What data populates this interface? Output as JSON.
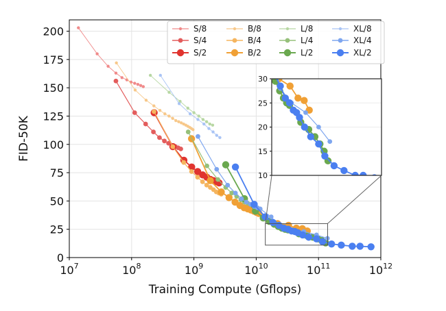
{
  "chart_data": {
    "type": "line",
    "title": "",
    "xlabel": "Training Compute (Gflops)",
    "ylabel": "FID-50K",
    "xscale": "log",
    "xlim": [
      10000000,
      1000000000000
    ],
    "ylim": [
      0,
      210
    ],
    "grid": true,
    "x_ticks": [
      {
        "value": 10000000,
        "base": "10",
        "exp": "7"
      },
      {
        "value": 100000000,
        "base": "10",
        "exp": "8"
      },
      {
        "value": 1000000000,
        "base": "10",
        "exp": "9"
      },
      {
        "value": 10000000000,
        "base": "10",
        "exp": "10"
      },
      {
        "value": 100000000000,
        "base": "10",
        "exp": "11"
      },
      {
        "value": 1000000000000,
        "base": "10",
        "exp": "12"
      }
    ],
    "y_ticks": [
      0,
      25,
      50,
      75,
      100,
      125,
      150,
      175,
      200
    ],
    "legend_position": "top-right",
    "series": [
      {
        "name": "S/8",
        "color": "#f08a8a",
        "size": "small",
        "x": [
          14000000,
          28000000,
          42000000,
          56000000,
          70000000,
          84000000,
          98000000,
          112000000,
          126000000,
          140000000,
          154000000
        ],
        "y": [
          203,
          180,
          169,
          163,
          159,
          157,
          155,
          154,
          153,
          152,
          151
        ]
      },
      {
        "name": "S/4",
        "color": "#e35c5c",
        "size": "medium",
        "x": [
          56000000,
          112000000,
          168000000,
          224000000,
          280000000,
          336000000,
          392000000,
          448000000,
          504000000,
          560000000,
          616000000
        ],
        "y": [
          156,
          128,
          118,
          111,
          106,
          103,
          101,
          99,
          98,
          97,
          96
        ]
      },
      {
        "name": "S/2",
        "color": "#e0342f",
        "size": "large",
        "x": [
          230000000,
          460000000,
          690000000,
          920000000,
          1150000000,
          1380000000,
          1610000000,
          1840000000,
          2070000000,
          2300000000,
          2530000000
        ],
        "y": [
          128,
          98,
          86,
          80,
          76,
          73,
          71,
          69,
          68,
          67,
          66
        ]
      },
      {
        "name": "B/8",
        "color": "#f7c88a",
        "size": "small",
        "x": [
          57000000,
          114000000,
          171000000,
          228000000,
          285000000,
          342000000,
          399000000,
          456000000,
          513000000,
          570000000,
          627000000,
          684000000,
          741000000,
          798000000,
          855000000,
          912000000,
          969000000
        ],
        "y": [
          172,
          148,
          139,
          134,
          130,
          127,
          125,
          123,
          121,
          120,
          119,
          118,
          117,
          116,
          115,
          114,
          113
        ]
      },
      {
        "name": "B/4",
        "color": "#f5b55f",
        "size": "medium",
        "x": [
          229000000,
          458000000,
          687000000,
          916000000,
          1145000000,
          1374000000,
          1603000000,
          1832000000,
          2061000000,
          2290000000,
          2519000000,
          2748000000
        ],
        "y": [
          129,
          98,
          84,
          76,
          71,
          67,
          64,
          62,
          60,
          58,
          57,
          56
        ]
      },
      {
        "name": "B/2",
        "color": "#f0a035",
        "size": "large",
        "x": [
          916000000,
          1832000000,
          2748000000,
          3664000000,
          4580000000,
          5496000000,
          6412000000,
          7328000000,
          8244000000,
          9160000000,
          10076000000,
          11000000000,
          22000000000,
          33000000000,
          44000000000,
          55000000000,
          66000000000
        ],
        "y": [
          105,
          68,
          58,
          53,
          49,
          46,
          44,
          43,
          42,
          41,
          40,
          39,
          30,
          28.5,
          26,
          25.5,
          23.5
        ]
      },
      {
        "name": "L/8",
        "color": "#b7d7a3",
        "size": "small",
        "x": [
          200000000,
          400000000,
          600000000,
          800000000,
          1000000000,
          1200000000,
          1400000000,
          1600000000,
          1800000000,
          2000000000
        ],
        "y": [
          161,
          146,
          138,
          132,
          128,
          125,
          122,
          120,
          118,
          117
        ]
      },
      {
        "name": "L/4",
        "color": "#96c07a",
        "size": "medium",
        "x": [
          809000000,
          1618000000,
          2427000000,
          3236000000,
          4045000000,
          4854000000,
          5663000000,
          6472000000,
          7281000000,
          8090000000,
          8899000000,
          9708000000
        ],
        "y": [
          111,
          81,
          69,
          62,
          57,
          54,
          51,
          49,
          48,
          47,
          46,
          45
        ]
      },
      {
        "name": "L/2",
        "color": "#6aa84f",
        "size": "large",
        "x": [
          3240000000,
          6480000000,
          9720000000,
          12960000000,
          16200000000,
          19440000000,
          22680000000,
          25920000000,
          29160000000,
          32400000000,
          48600000000,
          64800000000,
          81000000000,
          97200000000,
          113000000000,
          130000000000
        ],
        "y": [
          82,
          52,
          41,
          35,
          32,
          29.5,
          27.5,
          26,
          25,
          24.5,
          21,
          19.5,
          18,
          16.5,
          15,
          13
        ]
      },
      {
        "name": "XL/8",
        "color": "#a9c4f5",
        "size": "small",
        "x": [
          290000000,
          580000000,
          870000000,
          1160000000,
          1450000000,
          1740000000,
          2030000000,
          2320000000,
          2610000000
        ],
        "y": [
          161,
          136,
          127,
          122,
          118,
          114,
          111,
          108,
          106
        ]
      },
      {
        "name": "XL/4",
        "color": "#7ea6ef",
        "size": "medium",
        "x": [
          1160000000,
          2320000000,
          3480000000,
          4640000000,
          5800000000,
          6960000000,
          8120000000,
          9280000000,
          10440000000,
          11600000000,
          17400000000,
          23200000000,
          34800000000,
          58000000000,
          92800000000,
          139000000000
        ],
        "y": [
          107,
          78,
          64,
          57,
          52,
          49,
          47,
          45,
          44,
          43,
          36,
          28,
          25,
          23,
          20,
          17
        ]
      },
      {
        "name": "XL/2",
        "color": "#4a7ff0",
        "size": "large",
        "x": [
          4640000000,
          9280000000,
          13920000000,
          18560000000,
          23200000000,
          27840000000,
          32480000000,
          37120000000,
          41760000000,
          46400000000,
          55700000000,
          69600000000,
          92800000000,
          116000000000,
          162000000000,
          232000000000,
          348000000000,
          464000000000,
          696000000000
        ],
        "y": [
          80,
          47,
          36,
          31,
          28.5,
          26,
          25,
          23.5,
          23,
          22,
          20,
          18,
          16.5,
          14,
          12,
          11,
          10,
          10,
          9.5
        ]
      }
    ],
    "inset": {
      "xlim": [
        17000000000,
        900000000000
      ],
      "ylim": [
        10,
        30
      ],
      "y_ticks": [
        10,
        15,
        20,
        25,
        30
      ],
      "source_box": {
        "xlim": [
          14000000000,
          140000000000
        ],
        "ylim": [
          11,
          30
        ]
      }
    }
  }
}
